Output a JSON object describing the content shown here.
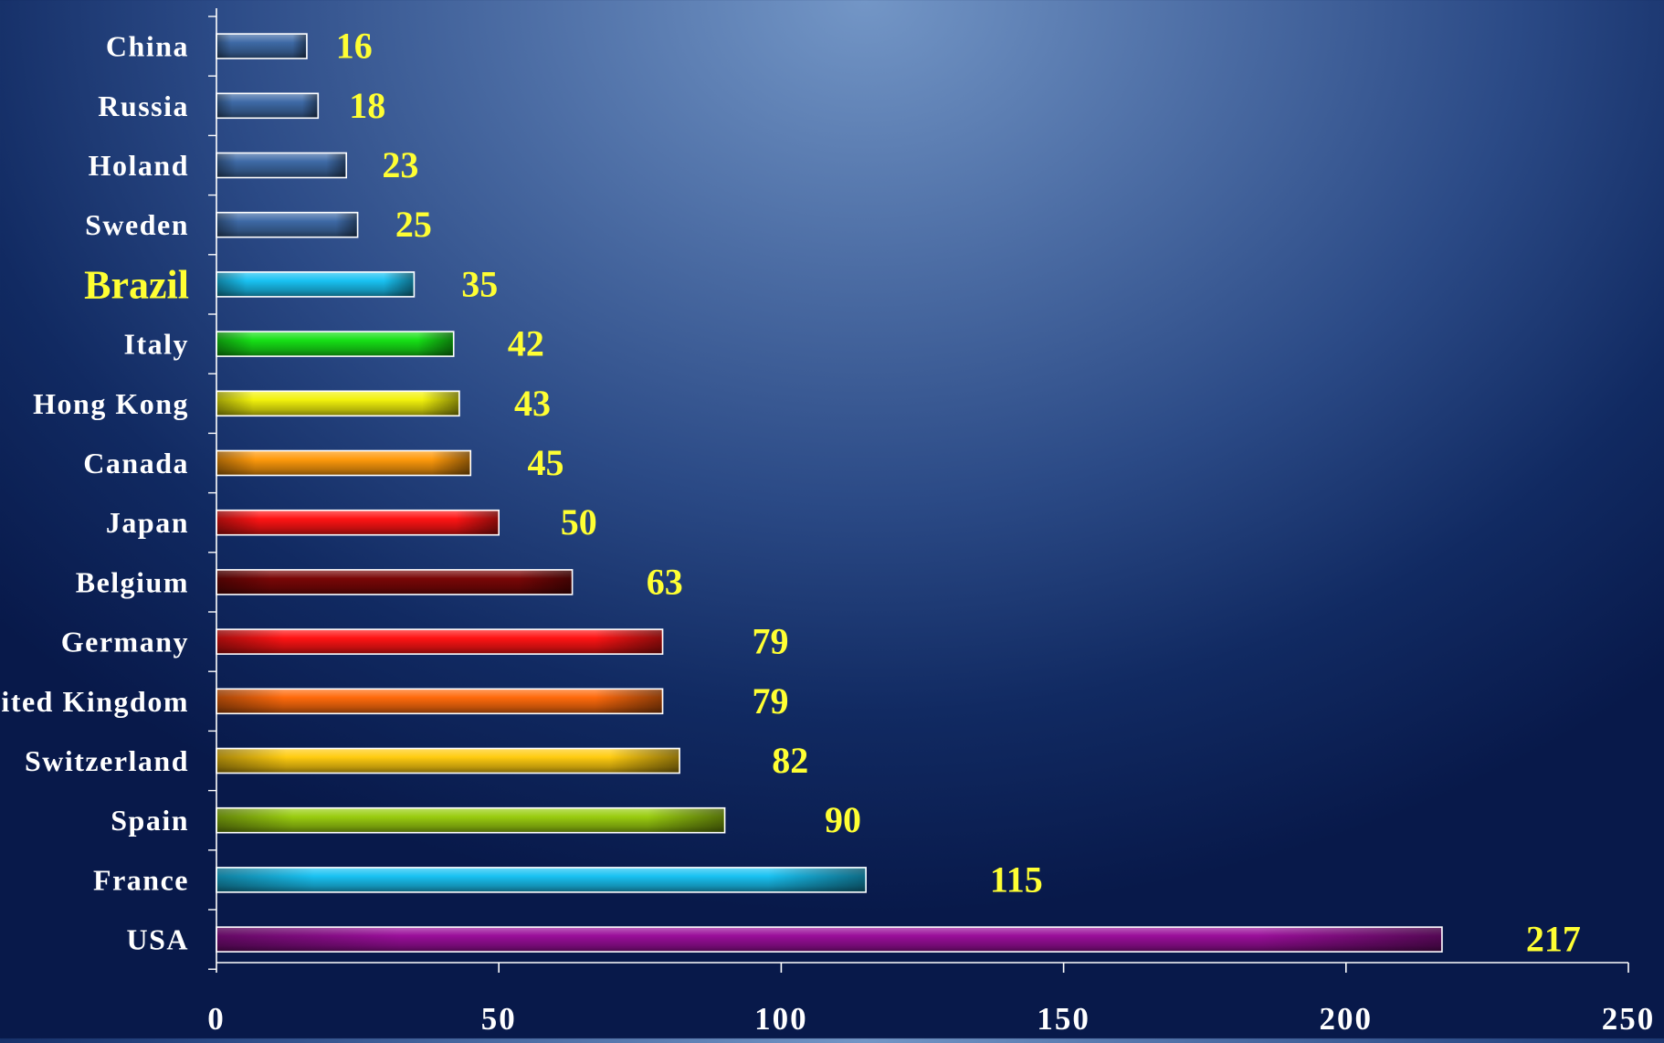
{
  "chart_data": {
    "type": "bar",
    "orientation": "horizontal",
    "categories": [
      "China",
      "Russia",
      "Holand",
      "Sweden",
      "Brazil",
      "Italy",
      "Hong Kong",
      "Canada",
      "Japan",
      "Belgium",
      "Germany",
      "United Kingdom",
      "Switzerland",
      "Spain",
      "France",
      "USA"
    ],
    "values": [
      16,
      18,
      23,
      25,
      35,
      42,
      43,
      45,
      50,
      63,
      79,
      79,
      82,
      90,
      115,
      217
    ],
    "bar_colors": [
      "#3e6aa6",
      "#3e6aa6",
      "#3e6aa6",
      "#3e6aa6",
      "#19c2f2",
      "#16e016",
      "#f2f20c",
      "#ff9a0c",
      "#ff1414",
      "#7a0606",
      "#ff1414",
      "#ff6a0c",
      "#ffcc10",
      "#9acd10",
      "#19c2f2",
      "#9a0e9a"
    ],
    "highlight": "Brazil",
    "xlim": [
      0,
      250
    ],
    "xticks": [
      0,
      50,
      100,
      150,
      200,
      250
    ],
    "grid": false,
    "legend": "none",
    "title": "",
    "xlabel": "",
    "ylabel": ""
  },
  "colors": {
    "axis": "#ffffff",
    "category_label": "#ffffff",
    "value_label": "#ffff33",
    "highlight_label": "#ffff33",
    "bar_border": "#ffffff"
  }
}
